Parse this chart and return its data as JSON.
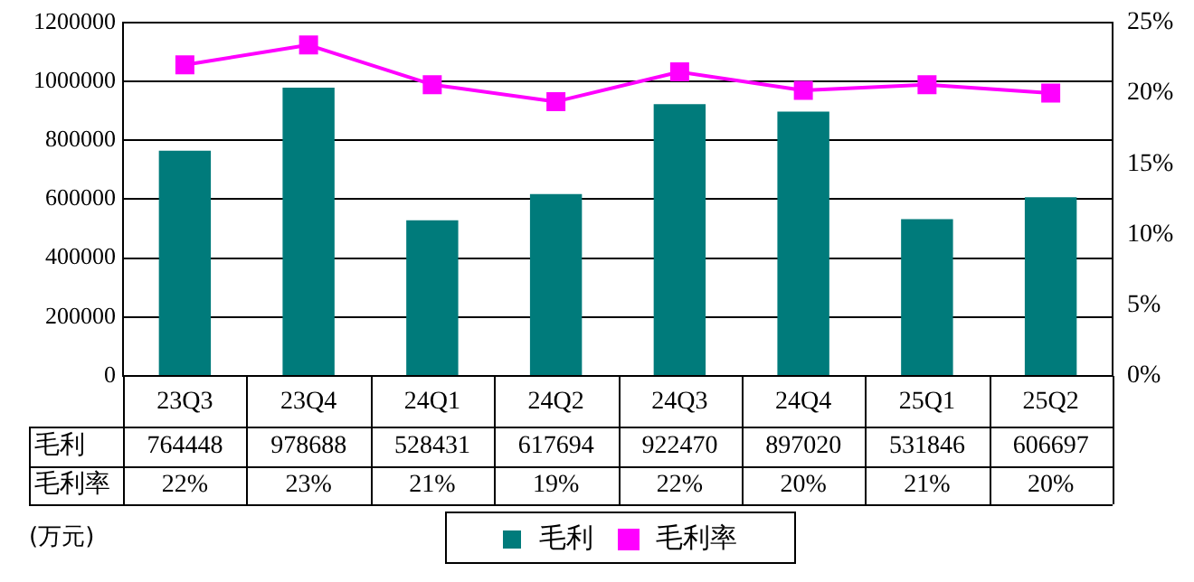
{
  "chart_data": {
    "type": "bar",
    "categories": [
      "23Q3",
      "23Q4",
      "24Q1",
      "24Q2",
      "24Q3",
      "24Q4",
      "25Q1",
      "25Q2"
    ],
    "series": [
      {
        "name": "毛利",
        "color": "#007b7b",
        "values": [
          764448,
          978688,
          528431,
          617694,
          922470,
          897020,
          531846,
          606697
        ],
        "value_labels": [
          "764448",
          "978688",
          "528431",
          "617694",
          "922470",
          "897020",
          "531846",
          "606697"
        ]
      },
      {
        "name": "毛利率",
        "type": "line",
        "axis": "y2",
        "color": "#ff00ff",
        "values": [
          22.0,
          23.4,
          20.6,
          19.4,
          21.5,
          20.2,
          20.6,
          20.0
        ],
        "value_labels": [
          "22%",
          "23%",
          "21%",
          "19%",
          "22%",
          "20%",
          "21%",
          "20%"
        ]
      }
    ],
    "ylim": [
      0,
      1200000
    ],
    "yticks": [
      0,
      200000,
      400000,
      600000,
      800000,
      1000000,
      1200000
    ],
    "y2lim": [
      0,
      25
    ],
    "y2ticks": [
      {
        "value": 0,
        "label": "0%"
      },
      {
        "value": 5,
        "label": "5%"
      },
      {
        "value": 10,
        "label": "10%"
      },
      {
        "value": 15,
        "label": "15%"
      },
      {
        "value": 20,
        "label": "20%"
      },
      {
        "value": 25,
        "label": "25%"
      }
    ],
    "grid": "y",
    "legend": "bottom",
    "marker": "square",
    "line_style": "solid",
    "annotations": [
      "(万元)"
    ]
  }
}
